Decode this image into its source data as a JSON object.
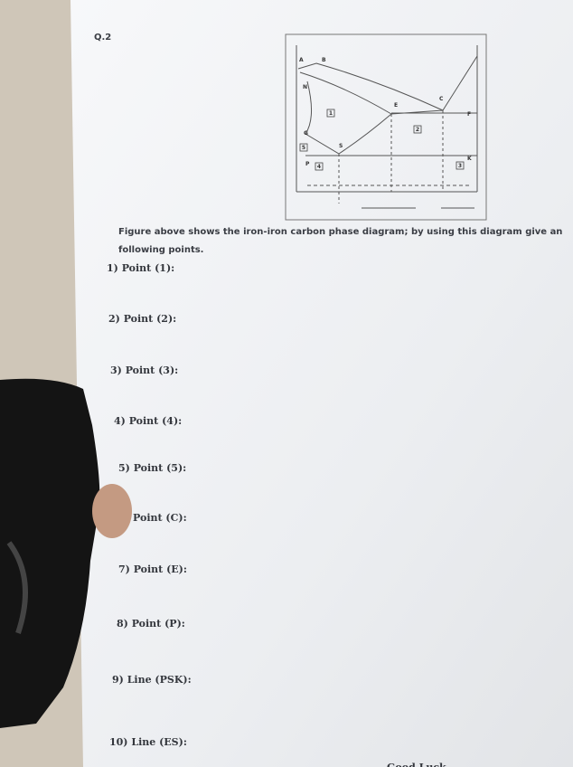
{
  "header": {
    "question": "Q.2"
  },
  "figure": {
    "points": [
      "A",
      "B",
      "N",
      "G",
      "S",
      "E",
      "C",
      "F",
      "P",
      "K"
    ],
    "regions": [
      "1",
      "2",
      "3",
      "4",
      "5"
    ]
  },
  "instruction": [
    "Figure above shows the iron-iron carbon phase diagram; by using this diagram give an",
    "following points."
  ],
  "items": [
    "1) Point (1):",
    "2) Point (2):",
    "3) Point (3):",
    "4) Point (4):",
    "5) Point (5):",
    "Point (C):",
    "7) Point (E):",
    "8) Point (P):",
    "9) Line (PSK):",
    "10) Line (ES):"
  ],
  "footer": "Good Luck"
}
